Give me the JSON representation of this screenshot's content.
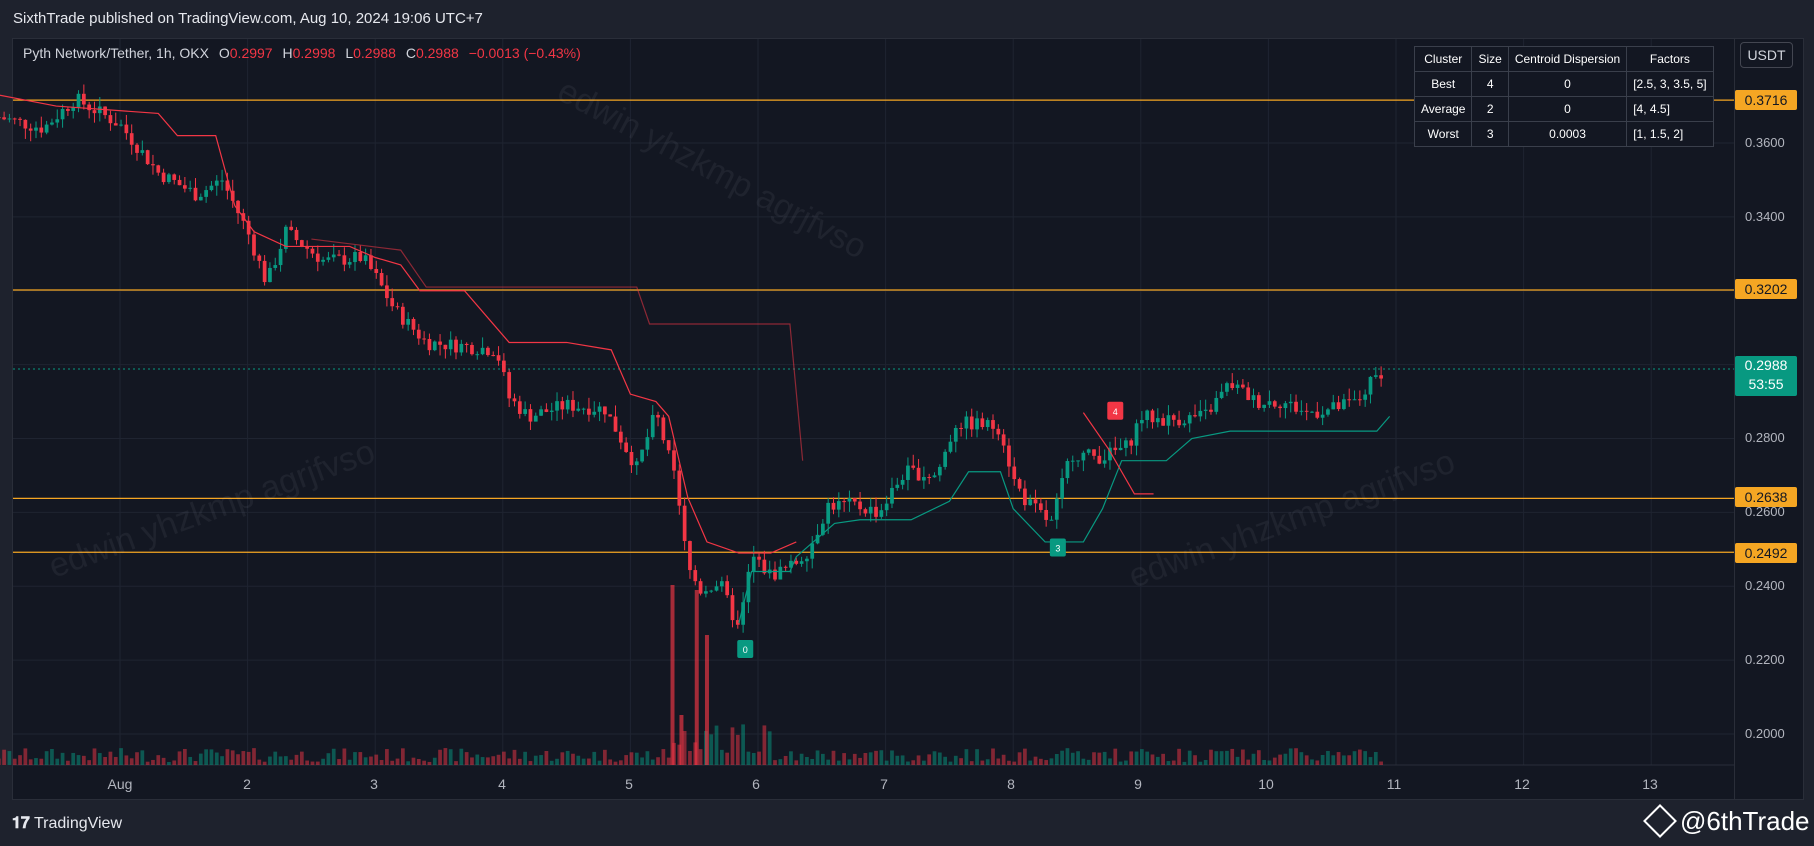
{
  "header": {
    "published_text": "SixthTrade published on TradingView.com, Aug 10, 2024 19:06 UTC+7"
  },
  "legend": {
    "symbol": "Pyth Network/Tether, 1h, OKX",
    "open_label": "O",
    "open": "0.2997",
    "high_label": "H",
    "high": "0.2998",
    "low_label": "L",
    "low": "0.2988",
    "close_label": "C",
    "close": "0.2988",
    "change": "−0.0013 (−0.43%)"
  },
  "cluster_table": {
    "headers": [
      "Cluster",
      "Size",
      "Centroid Dispersion",
      "Factors"
    ],
    "rows": [
      [
        "Best",
        "4",
        "0",
        "[2.5, 3, 3.5, 5]"
      ],
      [
        "Average",
        "2",
        "0",
        "[4, 4.5]"
      ],
      [
        "Worst",
        "3",
        "0.0003",
        "[1, 1.5, 2]"
      ]
    ]
  },
  "currency_button": "USDT",
  "price_axis": {
    "ticks": [
      "0.3600",
      "0.3400",
      "0.2800",
      "0.2600",
      "0.2400",
      "0.2200",
      "0.2000"
    ],
    "levels": [
      "0.3716",
      "0.3202",
      "0.2638",
      "0.2492"
    ],
    "current_price": "0.2988",
    "countdown": "53:55"
  },
  "time_axis": {
    "ticks": [
      "Aug",
      "2",
      "3",
      "4",
      "5",
      "6",
      "7",
      "8",
      "9",
      "10",
      "11",
      "12",
      "13"
    ]
  },
  "signals": [
    "4",
    "0",
    "3"
  ],
  "watermark_text": "edwin yhzkmp agrjfvso",
  "footer": {
    "tradingview": "TradingView",
    "handle": "@6thTrade"
  },
  "colors": {
    "up": "#089981",
    "down": "#f23645",
    "level": "#f5a623",
    "background": "#131722"
  },
  "chart_data": {
    "type": "candlestick",
    "symbol": "Pyth Network/Tether",
    "timeframe": "1h",
    "exchange": "OKX",
    "x": [
      "Aug 1",
      "Aug 2",
      "Aug 3",
      "Aug 4",
      "Aug 5",
      "Aug 6",
      "Aug 7",
      "Aug 8",
      "Aug 9",
      "Aug 10"
    ],
    "approx_close": [
      0.365,
      0.338,
      0.33,
      0.302,
      0.286,
      0.236,
      0.262,
      0.282,
      0.276,
      0.293
    ],
    "last_close": 0.2988,
    "horizontal_levels": [
      0.3716,
      0.3202,
      0.2638,
      0.2492
    ],
    "ylim": [
      0.195,
      0.385
    ],
    "grid": true
  }
}
